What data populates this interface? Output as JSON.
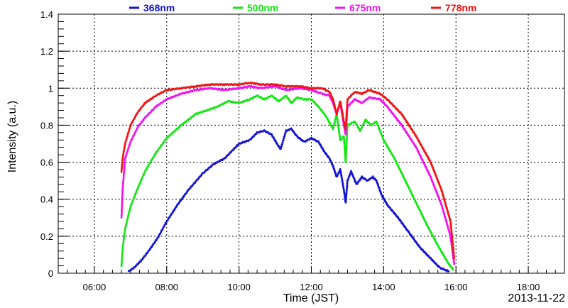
{
  "chart_data": {
    "type": "scatter",
    "xlabel": "Time (JST)",
    "ylabel": "Intensity (a.u.)",
    "date_label": "2013-11-22",
    "xlim": [
      5.0,
      19.0
    ],
    "ylim": [
      0,
      1.4
    ],
    "x_ticks": [
      {
        "v": 6,
        "label": "06:00"
      },
      {
        "v": 8,
        "label": "08:00"
      },
      {
        "v": 10,
        "label": "10:00"
      },
      {
        "v": 12,
        "label": "12:00"
      },
      {
        "v": 14,
        "label": "14:00"
      },
      {
        "v": 16,
        "label": "16:00"
      },
      {
        "v": 18,
        "label": "18:00"
      }
    ],
    "y_ticks": [
      {
        "v": 0,
        "label": "0"
      },
      {
        "v": 0.2,
        "label": "0.2"
      },
      {
        "v": 0.4,
        "label": "0.4"
      },
      {
        "v": 0.6,
        "label": "0.6"
      },
      {
        "v": 0.8,
        "label": "0.8"
      },
      {
        "v": 1.0,
        "label": "1"
      },
      {
        "v": 1.2,
        "label": "1.2"
      },
      {
        "v": 1.4,
        "label": "1.4"
      }
    ],
    "grid": true,
    "legend_position": "top",
    "series": [
      {
        "name": "368nm",
        "color": "#1414d2",
        "x": [
          6.95,
          7.1,
          7.3,
          7.5,
          7.75,
          8.0,
          8.3,
          8.6,
          9.0,
          9.3,
          9.6,
          9.8,
          10.0,
          10.3,
          10.5,
          10.7,
          10.9,
          11.05,
          11.15,
          11.3,
          11.45,
          11.6,
          11.8,
          12.0,
          12.2,
          12.35,
          12.5,
          12.6,
          12.7,
          12.8,
          12.9,
          12.95,
          13.0,
          13.1,
          13.25,
          13.4,
          13.55,
          13.7,
          13.8,
          13.95,
          14.1,
          14.4,
          14.7,
          15.0,
          15.3,
          15.55,
          15.8
        ],
        "y": [
          0.01,
          0.03,
          0.07,
          0.12,
          0.19,
          0.28,
          0.37,
          0.45,
          0.54,
          0.59,
          0.62,
          0.66,
          0.7,
          0.72,
          0.76,
          0.77,
          0.75,
          0.7,
          0.67,
          0.77,
          0.78,
          0.74,
          0.71,
          0.73,
          0.71,
          0.66,
          0.62,
          0.58,
          0.52,
          0.56,
          0.45,
          0.38,
          0.5,
          0.55,
          0.48,
          0.52,
          0.5,
          0.52,
          0.5,
          0.42,
          0.37,
          0.3,
          0.22,
          0.14,
          0.08,
          0.03,
          0.01
        ]
      },
      {
        "name": "500nm",
        "color": "#14e614",
        "x": [
          6.75,
          6.78,
          6.85,
          7.0,
          7.2,
          7.4,
          7.7,
          8.0,
          8.4,
          8.8,
          9.1,
          9.4,
          9.7,
          10.0,
          10.3,
          10.5,
          10.7,
          10.9,
          11.1,
          11.3,
          11.45,
          11.6,
          11.8,
          12.0,
          12.2,
          12.4,
          12.6,
          12.7,
          12.8,
          12.9,
          12.95,
          13.0,
          13.2,
          13.35,
          13.5,
          13.65,
          13.8,
          14.0,
          14.3,
          14.6,
          14.9,
          15.2,
          15.5,
          15.8,
          15.92
        ],
        "y": [
          0.04,
          0.13,
          0.24,
          0.36,
          0.46,
          0.55,
          0.65,
          0.73,
          0.8,
          0.86,
          0.88,
          0.9,
          0.93,
          0.92,
          0.94,
          0.96,
          0.94,
          0.96,
          0.93,
          0.96,
          0.92,
          0.95,
          0.94,
          0.94,
          0.9,
          0.85,
          0.78,
          0.86,
          0.72,
          0.74,
          0.6,
          0.8,
          0.82,
          0.77,
          0.83,
          0.8,
          0.82,
          0.72,
          0.62,
          0.5,
          0.38,
          0.26,
          0.15,
          0.05,
          0.02
        ]
      },
      {
        "name": "675nm",
        "color": "#f014f0",
        "x": [
          6.75,
          6.78,
          6.85,
          7.0,
          7.2,
          7.4,
          7.7,
          8.0,
          8.4,
          8.8,
          9.2,
          9.6,
          10.0,
          10.3,
          10.6,
          11.0,
          11.3,
          11.7,
          12.0,
          12.3,
          12.5,
          12.6,
          12.7,
          12.8,
          12.9,
          12.95,
          13.0,
          13.2,
          13.4,
          13.6,
          13.9,
          14.1,
          14.5,
          14.9,
          15.3,
          15.6,
          15.85,
          15.95
        ],
        "y": [
          0.3,
          0.45,
          0.62,
          0.71,
          0.79,
          0.84,
          0.9,
          0.94,
          0.97,
          0.99,
          1.0,
          0.99,
          1.0,
          1.01,
          1.0,
          1.01,
          0.99,
          1.0,
          0.99,
          0.97,
          0.96,
          0.92,
          0.86,
          0.92,
          0.8,
          0.75,
          0.9,
          0.94,
          0.92,
          0.95,
          0.94,
          0.9,
          0.8,
          0.68,
          0.52,
          0.37,
          0.2,
          0.05
        ]
      },
      {
        "name": "778nm",
        "color": "#f01414",
        "x": [
          6.75,
          6.78,
          6.85,
          7.0,
          7.2,
          7.4,
          7.7,
          8.0,
          8.4,
          8.8,
          9.2,
          9.6,
          10.0,
          10.3,
          10.6,
          11.0,
          11.3,
          11.7,
          12.0,
          12.3,
          12.5,
          12.6,
          12.7,
          12.8,
          12.9,
          12.95,
          13.0,
          13.2,
          13.4,
          13.6,
          13.9,
          14.1,
          14.5,
          14.9,
          15.3,
          15.6,
          15.85,
          15.95
        ],
        "y": [
          0.55,
          0.62,
          0.7,
          0.8,
          0.87,
          0.92,
          0.96,
          0.99,
          1.0,
          1.01,
          1.02,
          1.02,
          1.02,
          1.03,
          1.02,
          1.02,
          1.01,
          1.01,
          1.0,
          1.0,
          0.98,
          0.94,
          0.86,
          0.93,
          0.82,
          0.78,
          0.94,
          0.98,
          0.97,
          0.99,
          0.97,
          0.94,
          0.86,
          0.74,
          0.6,
          0.45,
          0.28,
          0.08
        ]
      }
    ]
  }
}
